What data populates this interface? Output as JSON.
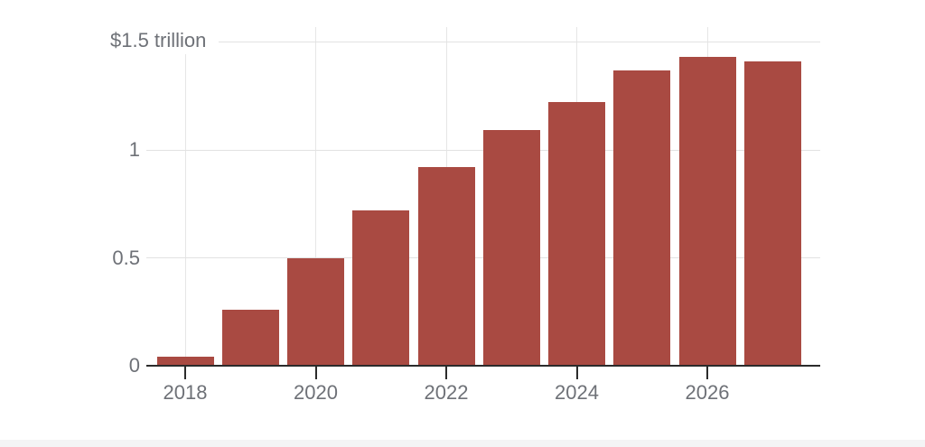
{
  "page": {
    "background": "#ffffff",
    "bottom_strip_color": "#f4f4f5"
  },
  "chart_data": {
    "type": "bar",
    "title": "",
    "xlabel": "",
    "ylabel": "",
    "categories": [
      "2018",
      "2019",
      "2020",
      "2021",
      "2022",
      "2023",
      "2024",
      "2025",
      "2026",
      "2027"
    ],
    "values": [
      0.04,
      0.26,
      0.5,
      0.72,
      0.92,
      1.09,
      1.22,
      1.37,
      1.43,
      1.41
    ],
    "ylim": [
      0,
      1.5
    ],
    "y_top_label": "$1.5 trillion",
    "y_ticks": [
      {
        "value": 0,
        "label": "0"
      },
      {
        "value": 0.5,
        "label": "0.5"
      },
      {
        "value": 1,
        "label": "1"
      }
    ],
    "y_gridline_values": [
      0.5,
      1,
      1.5
    ],
    "x_tick_labels": [
      "2018",
      "2020",
      "2022",
      "2024",
      "2026"
    ],
    "legend": "none",
    "grid": true,
    "colors": {
      "bar": "#a94a42",
      "h_gridline": "#e2e2e2",
      "v_gridline": "#e6e6e6",
      "axis": "#2b2b2b",
      "label": "#6e7177",
      "background": "#ffffff"
    }
  }
}
